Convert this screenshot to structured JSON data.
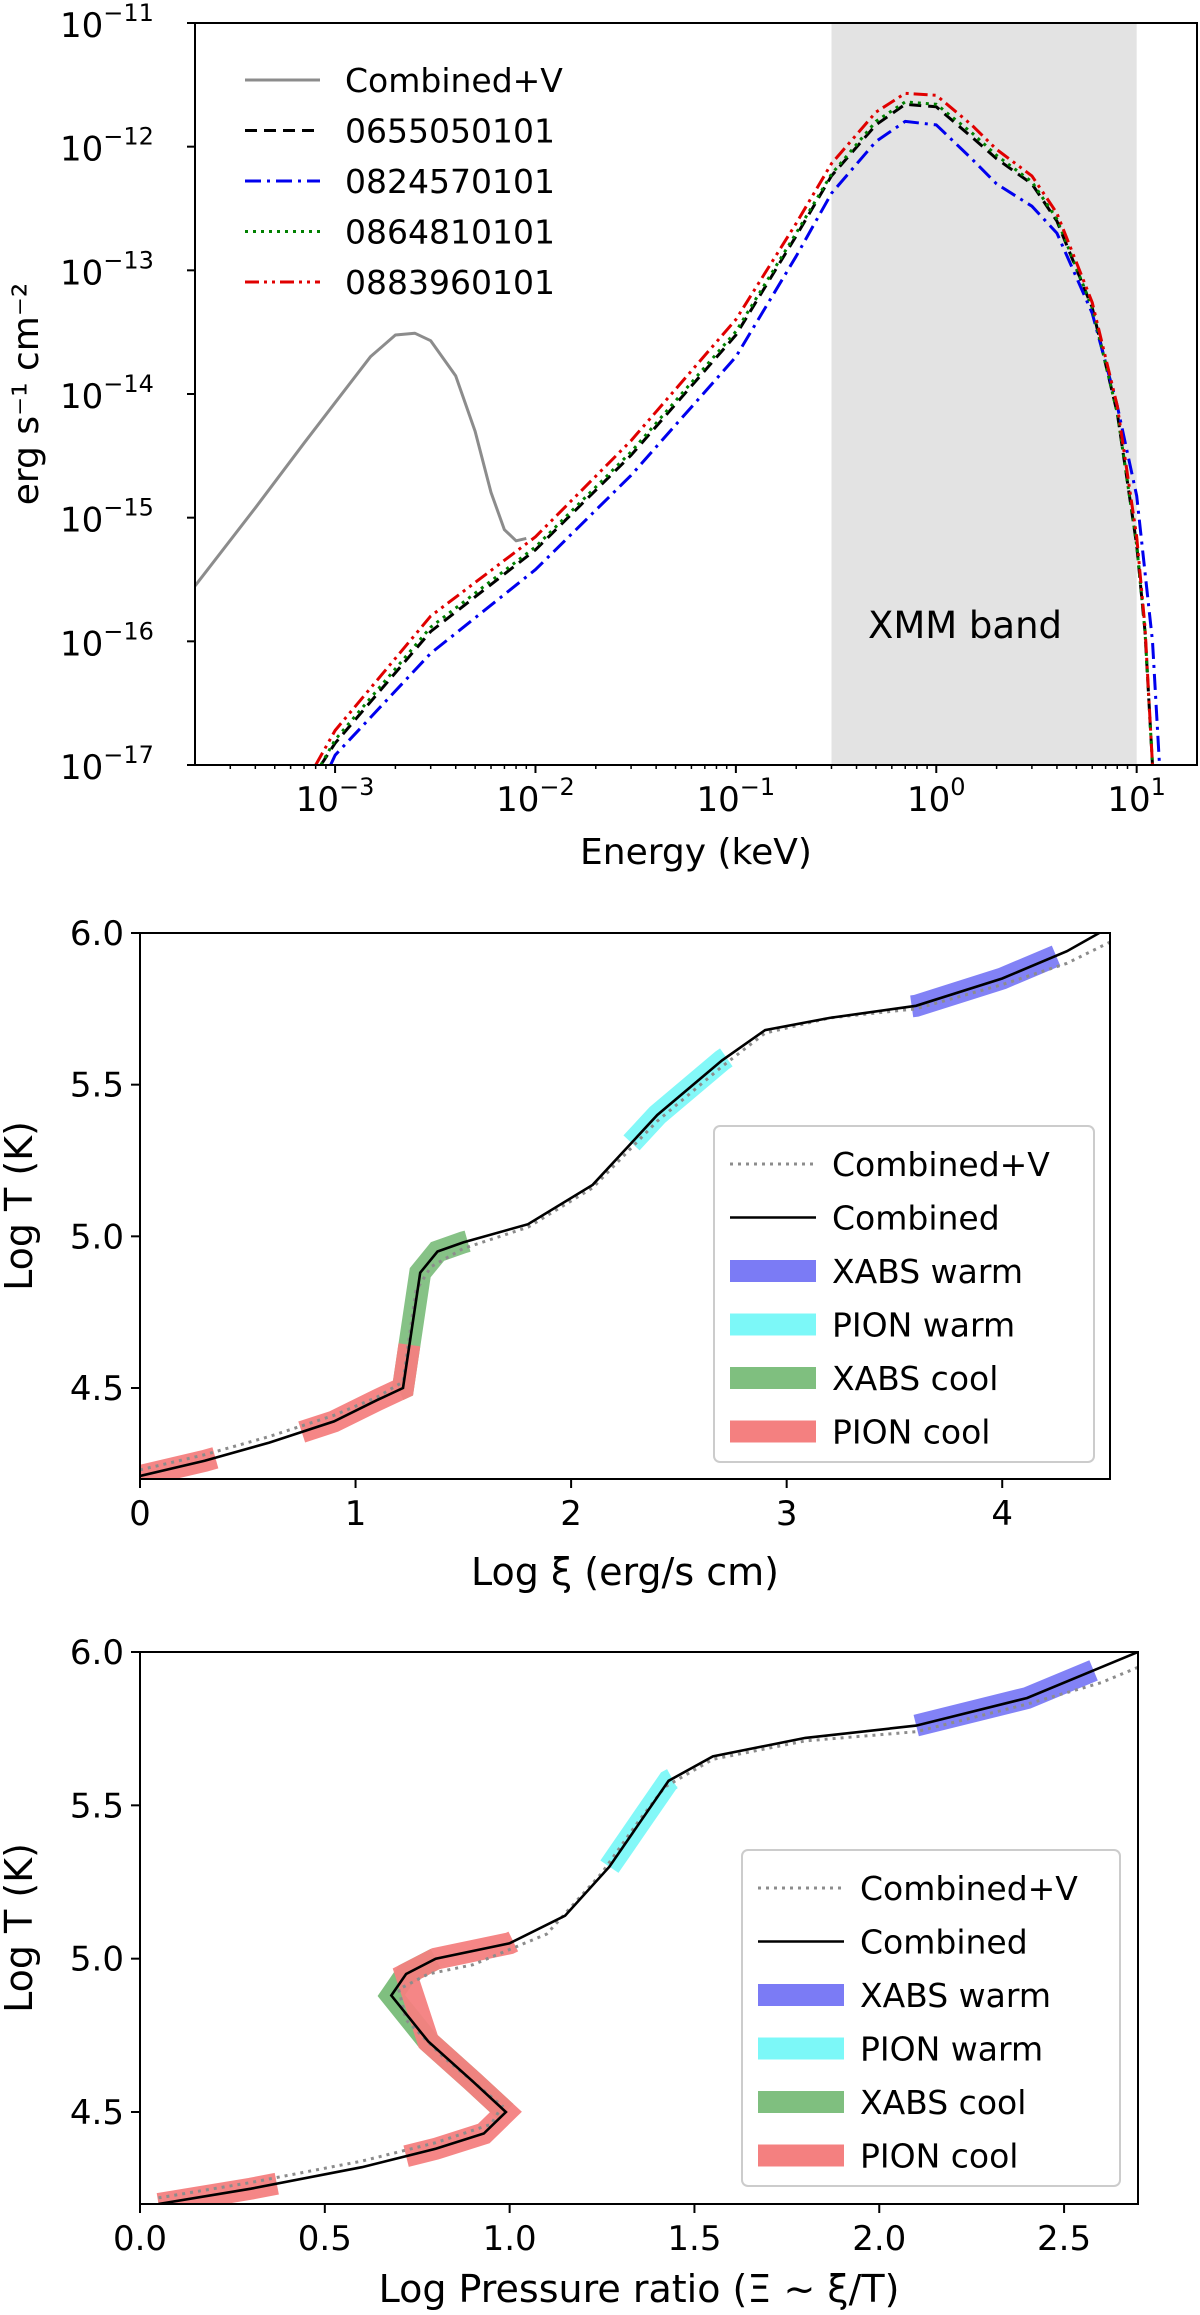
{
  "chart_data": [
    {
      "type": "line",
      "panel": "spectra",
      "xlabel": "Energy (keV)",
      "ylabel": "erg s⁻¹ cm⁻²",
      "xscale": "log",
      "yscale": "log",
      "xlim": [
        0.0002,
        20
      ],
      "ylim": [
        1e-17,
        1e-11
      ],
      "legend_position": "top-left",
      "x_tick_labels": [
        {
          "value": 0.001,
          "base": "10",
          "exp": "−3"
        },
        {
          "value": 0.01,
          "base": "10",
          "exp": "−2"
        },
        {
          "value": 0.1,
          "base": "10",
          "exp": "−1"
        },
        {
          "value": 1,
          "base": "10",
          "exp": "0"
        },
        {
          "value": 10,
          "base": "10",
          "exp": "1"
        }
      ],
      "y_tick_labels": [
        {
          "value": 1e-17,
          "base": "10",
          "exp": "−17"
        },
        {
          "value": 1e-16,
          "base": "10",
          "exp": "−16"
        },
        {
          "value": 1e-15,
          "base": "10",
          "exp": "−15"
        },
        {
          "value": 1e-14,
          "base": "10",
          "exp": "−14"
        },
        {
          "value": 1e-13,
          "base": "10",
          "exp": "−13"
        },
        {
          "value": 1e-12,
          "base": "10",
          "exp": "−12"
        },
        {
          "value": 1e-11,
          "base": "10",
          "exp": "−11"
        }
      ],
      "band": {
        "label": "XMM band",
        "x_range": [
          0.3,
          10
        ],
        "color": "#e3e3e3"
      },
      "series": [
        {
          "name": "Combined+V",
          "color": "#8c8c8c",
          "dash": "solid",
          "x": [
            0.0002,
            0.0004,
            0.0007,
            0.001,
            0.0015,
            0.002,
            0.0025,
            0.003,
            0.004,
            0.005,
            0.006,
            0.007,
            0.008,
            0.009
          ],
          "y": [
            2.8e-16,
            1.2e-15,
            4e-15,
            8.5e-15,
            2e-14,
            3e-14,
            3.1e-14,
            2.7e-14,
            1.4e-14,
            5e-15,
            1.6e-15,
            8e-16,
            6.5e-16,
            6.8e-16
          ]
        },
        {
          "name": "0655050101",
          "color": "#000000",
          "dash": "dashed",
          "x": [
            0.00085,
            0.001,
            0.003,
            0.01,
            0.03,
            0.1,
            0.2,
            0.3,
            0.5,
            0.7,
            1.0,
            1.5,
            2.0,
            3.0,
            4.0,
            6.0,
            8.0,
            10.0,
            11.0,
            12.0
          ],
          "y": [
            1e-17,
            1.5e-17,
            1.2e-16,
            5.5e-16,
            3.2e-15,
            3e-14,
            1.9e-13,
            5.8e-13,
            1.5e-12,
            2.2e-12,
            2.1e-12,
            1.2e-12,
            8e-13,
            5e-13,
            2.5e-13,
            5e-14,
            7e-15,
            6e-16,
            1.2e-16,
            1e-17
          ]
        },
        {
          "name": "0824570101",
          "color": "#0000ee",
          "dash": "dashdot",
          "x": [
            0.00095,
            0.001,
            0.003,
            0.01,
            0.03,
            0.1,
            0.2,
            0.3,
            0.5,
            0.7,
            1.0,
            1.5,
            2.0,
            3.0,
            4.0,
            6.0,
            8.0,
            10.0,
            12.0,
            13.0
          ],
          "y": [
            1e-17,
            1.2e-17,
            8e-17,
            3.8e-16,
            2.2e-15,
            2e-14,
            1.3e-13,
            4.2e-13,
            1.1e-12,
            1.6e-12,
            1.5e-12,
            8e-13,
            5e-13,
            3.3e-13,
            2e-13,
            4.5e-14,
            8e-15,
            1.5e-15,
            1e-16,
            1e-17
          ]
        },
        {
          "name": "0864810101",
          "color": "#008000",
          "dash": "dotted",
          "x": [
            0.00085,
            0.001,
            0.003,
            0.01,
            0.03,
            0.1,
            0.2,
            0.3,
            0.5,
            0.7,
            1.0,
            1.5,
            2.0,
            3.0,
            4.0,
            6.0,
            8.0,
            10.0,
            11.0,
            12.0
          ],
          "y": [
            1e-17,
            1.6e-17,
            1.3e-16,
            5.8e-16,
            3.4e-15,
            3.2e-14,
            2e-13,
            6e-13,
            1.6e-12,
            2.3e-12,
            2.2e-12,
            1.3e-12,
            8.5e-13,
            5.2e-13,
            2.6e-13,
            5e-14,
            7e-15,
            6e-16,
            1.2e-16,
            1e-17
          ]
        },
        {
          "name": "0883960101",
          "color": "#e00000",
          "dash": "dashdotdot",
          "x": [
            0.0008,
            0.001,
            0.003,
            0.01,
            0.03,
            0.1,
            0.2,
            0.3,
            0.5,
            0.7,
            1.0,
            1.5,
            2.0,
            3.0,
            4.0,
            6.0,
            8.0,
            10.0,
            11.0,
            12.0
          ],
          "y": [
            1e-17,
            1.9e-17,
            1.6e-16,
            7e-16,
            4.2e-15,
            4e-14,
            2.4e-13,
            7.3e-13,
            1.9e-12,
            2.7e-12,
            2.6e-12,
            1.5e-12,
            9.5e-13,
            5.8e-13,
            2.9e-13,
            5.5e-14,
            8e-15,
            7e-16,
            1.3e-16,
            1e-17
          ]
        }
      ]
    },
    {
      "type": "line",
      "panel": "scurve-xi",
      "xlabel": "Log ξ (erg/s cm)",
      "ylabel": "Log T (K)",
      "xlim": [
        0,
        4.5
      ],
      "ylim": [
        4.2,
        6.0
      ],
      "x_ticks": [
        0,
        1,
        2,
        3,
        4
      ],
      "x_tick_labels": [
        "0",
        "1",
        "2",
        "3",
        "4"
      ],
      "y_ticks": [
        4.5,
        5.0,
        5.5,
        6.0
      ],
      "y_tick_labels": [
        "4.5",
        "5.0",
        "5.5",
        "6.0"
      ],
      "legend_position": "lower-right",
      "series": [
        {
          "name": "Combined+V",
          "color": "#8c8c8c",
          "dash": "dotted",
          "x": [
            0,
            0.3,
            0.6,
            0.9,
            1.1,
            1.22,
            1.28,
            1.35,
            1.5,
            1.8,
            2.1,
            2.4,
            2.7,
            2.9,
            3.2,
            3.6,
            4.0,
            4.3,
            4.5
          ],
          "y": [
            4.23,
            4.28,
            4.34,
            4.41,
            4.47,
            4.52,
            4.82,
            4.9,
            4.96,
            5.03,
            5.16,
            5.38,
            5.56,
            5.67,
            5.72,
            5.75,
            5.83,
            5.9,
            5.97
          ]
        },
        {
          "name": "Combined",
          "color": "#000000",
          "dash": "solid",
          "x": [
            0,
            0.3,
            0.6,
            0.9,
            1.1,
            1.22,
            1.3,
            1.38,
            1.5,
            1.8,
            2.1,
            2.4,
            2.7,
            2.9,
            3.2,
            3.6,
            4.0,
            4.3,
            4.45
          ],
          "y": [
            4.21,
            4.26,
            4.32,
            4.39,
            4.46,
            4.5,
            4.88,
            4.95,
            4.98,
            5.04,
            5.17,
            5.4,
            5.58,
            5.68,
            5.72,
            5.76,
            5.85,
            5.94,
            6.0
          ]
        },
        {
          "name": "XABS warm",
          "color": "#7b7bf5",
          "band": true,
          "x_range": [
            3.58,
            4.25
          ]
        },
        {
          "name": "PION warm",
          "color": "#7cf8f8",
          "band": true,
          "x_range": [
            2.28,
            2.72
          ]
        },
        {
          "name": "XABS cool",
          "color": "#7fbf7f",
          "band": true,
          "x_range": [
            1.2,
            1.52
          ]
        },
        {
          "name": "PION cool",
          "color": "#f48080",
          "band": true,
          "x_ranges": [
            [
              0,
              0.35
            ],
            [
              0.75,
              1.25
            ]
          ]
        }
      ]
    },
    {
      "type": "line",
      "panel": "scurve-pressure",
      "xlabel": "Log Pressure ratio (Ξ ~ ξ/T)",
      "ylabel": "Log T (K)",
      "xlim": [
        0,
        2.7
      ],
      "ylim": [
        4.2,
        6.0
      ],
      "x_ticks": [
        0,
        0.5,
        1.0,
        1.5,
        2.0,
        2.5
      ],
      "x_tick_labels": [
        "0.0",
        "0.5",
        "1.0",
        "1.5",
        "2.0",
        "2.5"
      ],
      "y_ticks": [
        4.5,
        5.0,
        5.5,
        6.0
      ],
      "y_tick_labels": [
        "4.5",
        "5.0",
        "5.5",
        "6.0"
      ],
      "legend_position": "lower-right",
      "series": [
        {
          "name": "Combined+V",
          "color": "#8c8c8c",
          "dash": "dotted",
          "x": [
            0.05,
            0.3,
            0.6,
            0.8,
            0.95,
            0.98,
            0.82,
            0.72,
            0.7,
            0.78,
            0.9,
            1.1,
            1.25,
            1.35,
            1.42,
            1.55,
            1.8,
            2.1,
            2.4,
            2.6,
            2.7
          ],
          "y": [
            4.22,
            4.27,
            4.34,
            4.4,
            4.46,
            4.52,
            4.68,
            4.8,
            4.9,
            4.95,
            4.98,
            5.08,
            5.28,
            5.45,
            5.56,
            5.65,
            5.71,
            5.74,
            5.83,
            5.9,
            5.95
          ]
        },
        {
          "name": "Combined",
          "color": "#000000",
          "dash": "solid",
          "x": [
            0.05,
            0.3,
            0.6,
            0.8,
            0.93,
            0.99,
            0.9,
            0.78,
            0.68,
            0.72,
            0.8,
            1.0,
            1.15,
            1.27,
            1.35,
            1.43,
            1.55,
            1.8,
            2.1,
            2.4,
            2.6,
            2.7
          ],
          "y": [
            4.2,
            4.25,
            4.32,
            4.38,
            4.43,
            4.5,
            4.6,
            4.73,
            4.88,
            4.95,
            5.0,
            5.05,
            5.14,
            5.3,
            5.44,
            5.58,
            5.66,
            5.72,
            5.76,
            5.85,
            5.95,
            6.0
          ]
        },
        {
          "name": "XABS warm",
          "color": "#7b7bf5",
          "band": true,
          "x_range": [
            2.1,
            2.58
          ]
        },
        {
          "name": "PION warm",
          "color": "#7cf8f8",
          "band": true,
          "x_range": [
            1.27,
            1.44
          ]
        },
        {
          "name": "XABS cool",
          "color": "#7fbf7f",
          "band": true,
          "param_range": [
            0.68,
            1.0
          ]
        },
        {
          "name": "PION cool",
          "color": "#f48080",
          "band": true,
          "x_ranges": [
            [
              0.05,
              0.37
            ],
            [
              0.72,
              1.01
            ]
          ]
        }
      ]
    }
  ]
}
